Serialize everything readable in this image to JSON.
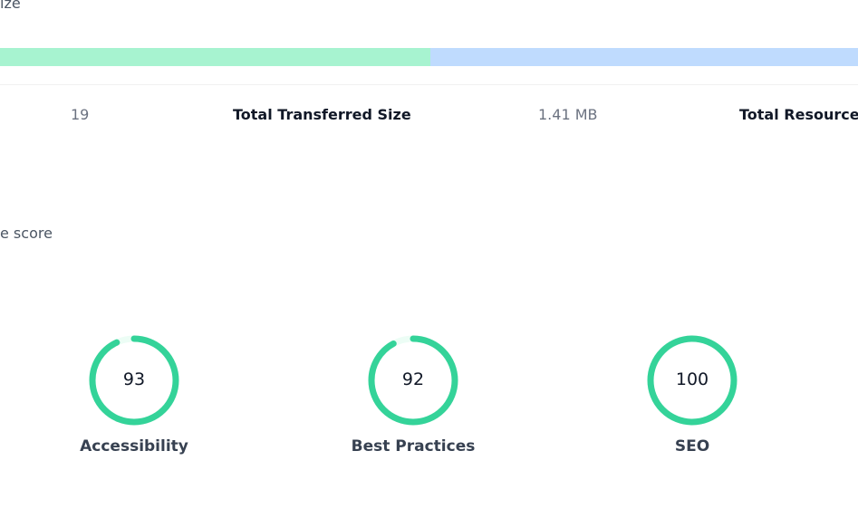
{
  "resource_size_caption": "ize",
  "size_bar": {
    "segments": [
      {
        "share_percent": 50.2,
        "color": "#a7f3d0"
      },
      {
        "share_percent": 49.8,
        "color": "#bfdbfe"
      }
    ]
  },
  "stats": {
    "requests_value": "19",
    "transferred_label": "Total Transferred Size",
    "transferred_value": "1.41 MB",
    "resource_label": "Total Resource S"
  },
  "score_caption": "e score",
  "scores": [
    {
      "label": "Accessibility",
      "value": "93",
      "fraction": 0.93
    },
    {
      "label": "Best Practices",
      "value": "92",
      "fraction": 0.92
    },
    {
      "label": "SEO",
      "value": "100",
      "fraction": 1.0
    }
  ],
  "colors": {
    "gauge_good": "#34d399",
    "gauge_track": "#ecfdf5"
  }
}
